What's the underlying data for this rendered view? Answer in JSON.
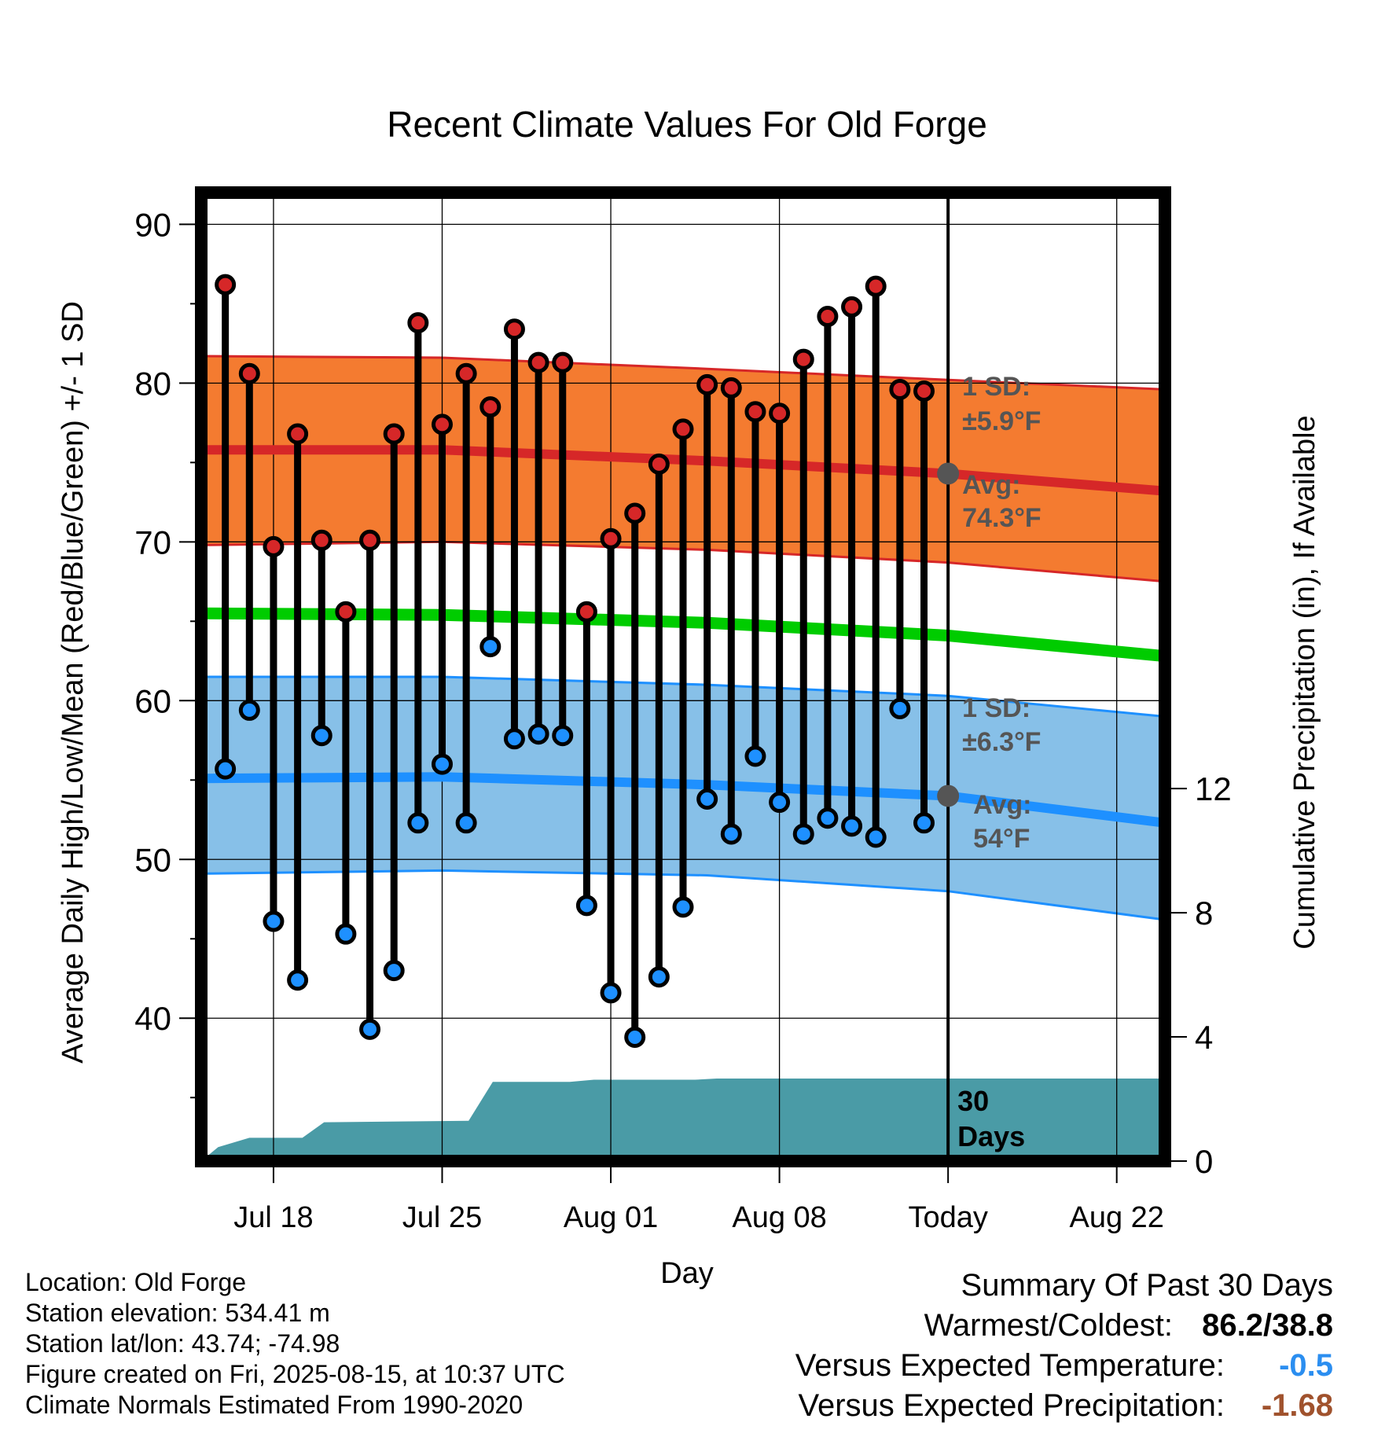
{
  "chart_data": {
    "type": "line",
    "title": "Recent Climate Values For Old Forge",
    "xlabel": "Day",
    "ylabel_left": "Average Daily High/Low/Mean (Red/Blue/Green) +/- 1 SD",
    "ylabel_right": "Cumulative Precipitation (in), If Available",
    "ylim_left": [
      31,
      92
    ],
    "ylim_right": [
      0,
      31.2
    ],
    "y_ticks_left": [
      40,
      50,
      60,
      70,
      80,
      90
    ],
    "y_ticks_right": [
      0,
      4,
      8,
      12
    ],
    "xlim": [
      "2025-07-15",
      "2025-08-24"
    ],
    "x_ticks": [
      {
        "date": "2025-07-18",
        "label": "Jul 18"
      },
      {
        "date": "2025-07-25",
        "label": "Jul 25"
      },
      {
        "date": "2025-08-01",
        "label": "Aug 01"
      },
      {
        "date": "2025-08-08",
        "label": "Aug 08"
      },
      {
        "date": "2025-08-15",
        "label": "Today"
      },
      {
        "date": "2025-08-22",
        "label": "Aug 22"
      }
    ],
    "grid": true,
    "today": "2025-08-15",
    "daily_obs": [
      {
        "date": "2025-07-16",
        "high": 86.2,
        "low": 55.7
      },
      {
        "date": "2025-07-17",
        "high": 80.6,
        "low": 59.4
      },
      {
        "date": "2025-07-18",
        "high": 69.7,
        "low": 46.1
      },
      {
        "date": "2025-07-19",
        "high": 76.8,
        "low": 42.4
      },
      {
        "date": "2025-07-20",
        "high": 70.1,
        "low": 57.8
      },
      {
        "date": "2025-07-21",
        "high": 65.6,
        "low": 45.3
      },
      {
        "date": "2025-07-22",
        "high": 70.1,
        "low": 39.3
      },
      {
        "date": "2025-07-23",
        "high": 76.8,
        "low": 43.0
      },
      {
        "date": "2025-07-24",
        "high": 83.8,
        "low": 52.3
      },
      {
        "date": "2025-07-25",
        "high": 77.4,
        "low": 56.0
      },
      {
        "date": "2025-07-26",
        "high": 80.6,
        "low": 52.3
      },
      {
        "date": "2025-07-27",
        "high": 78.5,
        "low": 63.4
      },
      {
        "date": "2025-07-28",
        "high": 83.4,
        "low": 57.6
      },
      {
        "date": "2025-07-29",
        "high": 81.3,
        "low": 57.9
      },
      {
        "date": "2025-07-30",
        "high": 81.3,
        "low": 57.8
      },
      {
        "date": "2025-07-31",
        "high": 65.6,
        "low": 47.1
      },
      {
        "date": "2025-08-01",
        "high": 70.2,
        "low": 41.6
      },
      {
        "date": "2025-08-02",
        "high": 71.8,
        "low": 38.8
      },
      {
        "date": "2025-08-03",
        "high": 74.9,
        "low": 42.6
      },
      {
        "date": "2025-08-04",
        "high": 77.1,
        "low": 47.0
      },
      {
        "date": "2025-08-05",
        "high": 79.9,
        "low": 53.8
      },
      {
        "date": "2025-08-06",
        "high": 79.7,
        "low": 51.6
      },
      {
        "date": "2025-08-07",
        "high": 78.2,
        "low": 56.5
      },
      {
        "date": "2025-08-08",
        "high": 78.1,
        "low": 53.6
      },
      {
        "date": "2025-08-09",
        "high": 81.5,
        "low": 51.6
      },
      {
        "date": "2025-08-10",
        "high": 84.2,
        "low": 52.6
      },
      {
        "date": "2025-08-11",
        "high": 84.8,
        "low": 52.1
      },
      {
        "date": "2025-08-12",
        "high": 86.1,
        "low": 51.4
      },
      {
        "date": "2025-08-13",
        "high": 79.6,
        "low": 59.5
      },
      {
        "date": "2025-08-14",
        "high": 79.5,
        "low": 52.3
      }
    ],
    "normal_high": {
      "color": "#d62728",
      "fill": "#f47b30",
      "x": [
        "2025-07-15",
        "2025-07-25",
        "2025-08-05",
        "2025-08-15",
        "2025-08-24"
      ],
      "mean": [
        75.8,
        75.8,
        75.1,
        74.3,
        73.2
      ],
      "upper": [
        81.7,
        81.6,
        80.9,
        80.2,
        79.6
      ],
      "lower": [
        69.8,
        70.0,
        69.5,
        68.7,
        67.5
      ]
    },
    "normal_mean": {
      "color": "#00cc00",
      "x": [
        "2025-07-15",
        "2025-07-25",
        "2025-08-05",
        "2025-08-15",
        "2025-08-24"
      ],
      "mean": [
        65.5,
        65.4,
        64.9,
        64.1,
        62.8
      ]
    },
    "normal_low": {
      "color": "#1e90ff",
      "fill": "#87c0e8",
      "x": [
        "2025-07-15",
        "2025-07-25",
        "2025-08-05",
        "2025-08-15",
        "2025-08-24"
      ],
      "mean": [
        55.1,
        55.2,
        54.7,
        54.0,
        52.3
      ],
      "upper": [
        61.5,
        61.5,
        61.0,
        60.3,
        59.0
      ],
      "lower": [
        49.1,
        49.3,
        49.0,
        48.0,
        46.2
      ]
    },
    "precip": {
      "color": "#4a9ba6",
      "x": [
        "2025-07-15",
        "2025-07-15.7",
        "2025-07-17",
        "2025-07-19.2",
        "2025-07-20.1",
        "2025-07-26.1",
        "2025-07-27.1",
        "2025-07-30.3",
        "2025-07-31.3",
        "2025-08-04.5",
        "2025-08-05.4",
        "2025-08-24"
      ],
      "cumulative": [
        0.0,
        0.45,
        0.75,
        0.75,
        1.25,
        1.3,
        2.55,
        2.55,
        2.62,
        2.62,
        2.66,
        2.66
      ]
    },
    "annotations": {
      "high_sd": {
        "line1": "1 SD:",
        "line2": "±5.9",
        "unit": "°F"
      },
      "high_avg": {
        "line1": "Avg:",
        "line2": "74.3",
        "unit": "°F",
        "value": 74.3
      },
      "low_sd": {
        "line1": "1 SD:",
        "line2": "±6.3",
        "unit": "°F"
      },
      "low_avg": {
        "line1": "Avg:",
        "line2": "54",
        "unit": "°F",
        "value": 54
      },
      "period": {
        "line1": "30",
        "line2": "Days"
      }
    }
  },
  "info": {
    "location": "Location: Old Forge",
    "elevation": "Station elevation: 534.41 m",
    "latlon": "Station lat/lon: 43.74; -74.98",
    "created": "Figure created on Fri, 2025-08-15, at 10:37 UTC",
    "normals": "Climate Normals Estimated From 1990-2020"
  },
  "summary": {
    "title": "Summary Of Past 30 Days",
    "warmest_label": "Warmest/Coldest:",
    "warmest_value": "86.2/38.8",
    "temp_label": "Versus Expected Temperature:",
    "temp_value": "-0.5",
    "precip_label": "Versus Expected Precipitation:",
    "precip_value": "-1.68",
    "colors": {
      "temp": "#2b8ef0",
      "precip": "#a0522d"
    }
  }
}
